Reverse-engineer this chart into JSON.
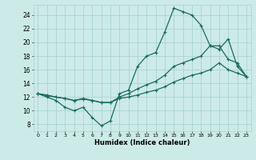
{
  "xlabel": "Humidex (Indice chaleur)",
  "xlim": [
    -0.5,
    23.5
  ],
  "ylim": [
    7.0,
    25.5
  ],
  "yticks": [
    8,
    10,
    12,
    14,
    16,
    18,
    20,
    22,
    24
  ],
  "xticks": [
    0,
    1,
    2,
    3,
    4,
    5,
    6,
    7,
    8,
    9,
    10,
    11,
    12,
    13,
    14,
    15,
    16,
    17,
    18,
    19,
    20,
    21,
    22,
    23
  ],
  "bg_color": "#cceae8",
  "grid_color": "#aad4d2",
  "line_color": "#1a6b5e",
  "line1_x": [
    0,
    1,
    2,
    3,
    4,
    5,
    6,
    7,
    8,
    9,
    10,
    11,
    12,
    13,
    14,
    15,
    16,
    17,
    18,
    19,
    20,
    21,
    22,
    23
  ],
  "line1_y": [
    12.5,
    12.0,
    11.5,
    10.5,
    10.0,
    10.5,
    9.0,
    7.8,
    8.5,
    12.5,
    13.0,
    16.5,
    18.0,
    18.5,
    21.5,
    25.0,
    24.5,
    24.0,
    22.5,
    19.5,
    19.0,
    20.5,
    16.5,
    15.0
  ],
  "line2_x": [
    0,
    1,
    2,
    3,
    4,
    5,
    6,
    7,
    8,
    9,
    10,
    11,
    12,
    13,
    14,
    15,
    16,
    17,
    18,
    19,
    20,
    21,
    22,
    23
  ],
  "line2_y": [
    12.5,
    12.3,
    12.0,
    11.8,
    11.5,
    11.8,
    11.5,
    11.2,
    11.2,
    12.0,
    12.5,
    13.2,
    13.8,
    14.3,
    15.2,
    16.5,
    17.0,
    17.5,
    18.0,
    19.5,
    19.5,
    17.5,
    17.0,
    15.0
  ],
  "line3_x": [
    0,
    1,
    2,
    3,
    4,
    5,
    6,
    7,
    8,
    9,
    10,
    11,
    12,
    13,
    14,
    15,
    16,
    17,
    18,
    19,
    20,
    21,
    22,
    23
  ],
  "line3_y": [
    12.5,
    12.2,
    12.0,
    11.8,
    11.5,
    11.7,
    11.5,
    11.2,
    11.2,
    11.8,
    12.0,
    12.3,
    12.7,
    13.0,
    13.5,
    14.2,
    14.7,
    15.2,
    15.5,
    16.0,
    17.0,
    16.0,
    15.5,
    15.0
  ]
}
